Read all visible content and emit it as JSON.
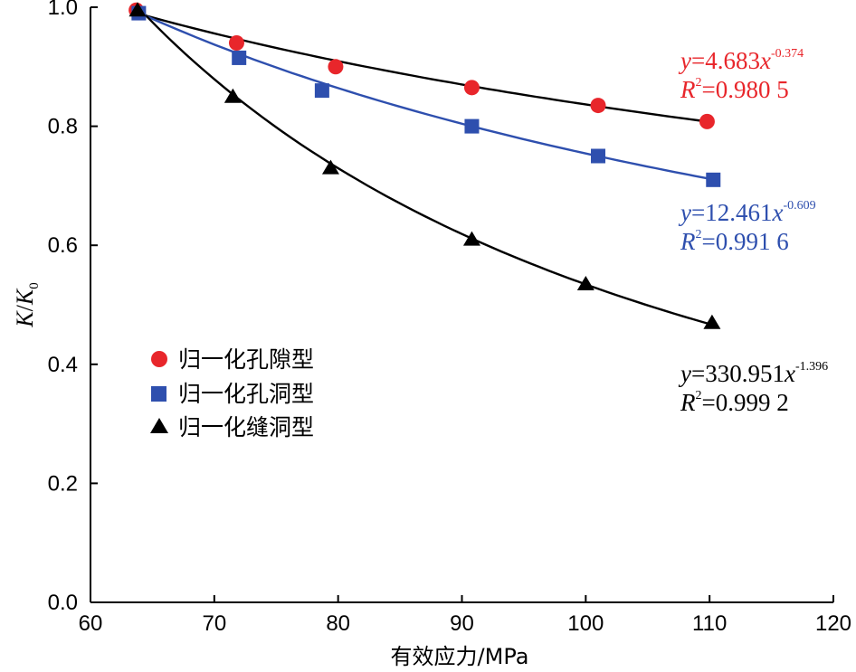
{
  "chart_data": {
    "type": "line",
    "title": "",
    "xlabel": "有效应力/MPa",
    "ylabel": "K/K0",
    "ylabel_parts": {
      "k": "K",
      "slash": "/",
      "k0": "K",
      "sub": "0"
    },
    "xlim": [
      60,
      120
    ],
    "ylim": [
      0.0,
      1.0
    ],
    "x_ticks": [
      60,
      70,
      80,
      90,
      100,
      110,
      120
    ],
    "x_tick_labels": [
      "60",
      "70",
      "80",
      "90",
      "100",
      "110",
      "120"
    ],
    "y_ticks": [
      0.0,
      0.2,
      0.4,
      0.6,
      0.8,
      1.0
    ],
    "y_tick_labels": [
      "0.0",
      "0.2",
      "0.4",
      "0.6",
      "0.8",
      "1.0"
    ],
    "grid": false,
    "legend_position": "left-middle",
    "series": [
      {
        "name": "归一化孔隙型",
        "marker": "circle",
        "color": "#e8262b",
        "line_color": "#000000",
        "points": [
          {
            "x": 63.7,
            "y": 0.995
          },
          {
            "x": 71.8,
            "y": 0.94
          },
          {
            "x": 79.8,
            "y": 0.9
          },
          {
            "x": 90.8,
            "y": 0.865
          },
          {
            "x": 101.0,
            "y": 0.835
          },
          {
            "x": 109.8,
            "y": 0.808
          }
        ],
        "fit": {
          "a": 4.683,
          "b": -0.374,
          "x_range": [
            63.7,
            109.8
          ]
        },
        "equation": {
          "y": "y",
          "eq": "=4.683",
          "x": "x",
          "exp": "-0.374",
          "r": "R",
          "r_sup": "2",
          "r_val": "=0.980 5"
        }
      },
      {
        "name": "归一化孔洞型",
        "marker": "square",
        "color": "#2e4fae",
        "line_color": "#2e4fae",
        "points": [
          {
            "x": 63.9,
            "y": 0.99
          },
          {
            "x": 72.0,
            "y": 0.915
          },
          {
            "x": 78.7,
            "y": 0.86
          },
          {
            "x": 90.8,
            "y": 0.8
          },
          {
            "x": 101.0,
            "y": 0.75
          },
          {
            "x": 110.3,
            "y": 0.71
          }
        ],
        "fit": {
          "a": 12.461,
          "b": -0.609,
          "x_range": [
            63.9,
            110.3
          ]
        },
        "equation": {
          "y": "y",
          "eq": "=12.461",
          "x": "x",
          "exp": "-0.609",
          "r": "R",
          "r_sup": "2",
          "r_val": "=0.991 6"
        }
      },
      {
        "name": "归一化缝洞型",
        "marker": "triangle",
        "color": "#000000",
        "line_color": "#000000",
        "points": [
          {
            "x": 63.8,
            "y": 0.995
          },
          {
            "x": 71.5,
            "y": 0.85
          },
          {
            "x": 79.4,
            "y": 0.73
          },
          {
            "x": 90.8,
            "y": 0.61
          },
          {
            "x": 100.0,
            "y": 0.535
          },
          {
            "x": 110.2,
            "y": 0.47
          }
        ],
        "fit": {
          "a": 330.951,
          "b": -1.396,
          "x_range": [
            63.8,
            110.2
          ]
        },
        "equation": {
          "y": "y",
          "eq": "=330.951",
          "x": "x",
          "exp": "-1.396",
          "r": "R",
          "r_sup": "2",
          "r_val": "=0.999 2"
        }
      }
    ]
  }
}
